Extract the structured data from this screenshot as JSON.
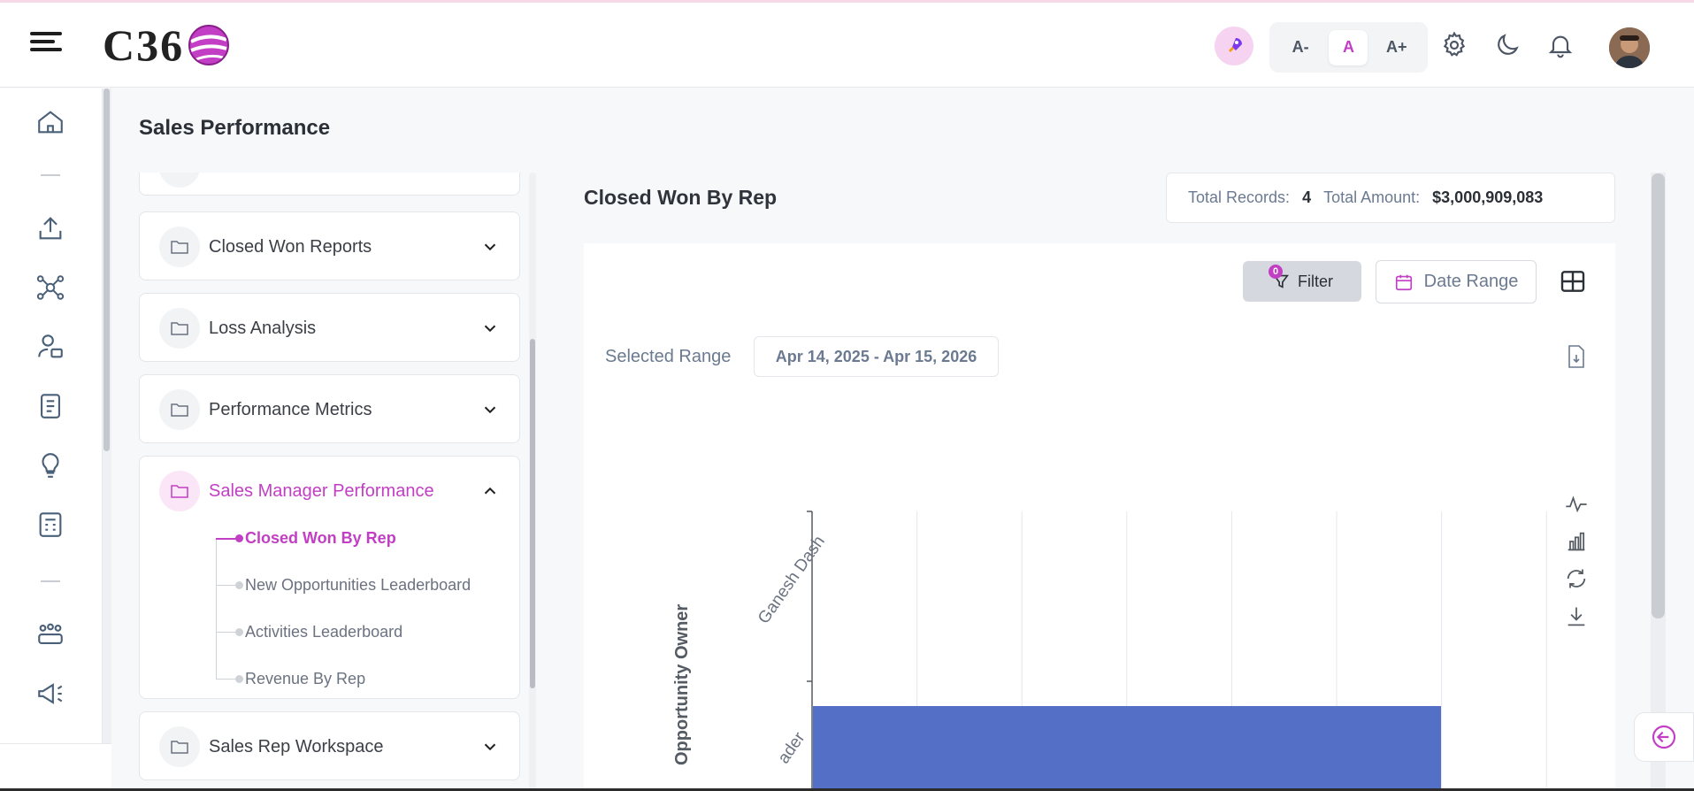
{
  "header": {
    "logo_text": "C36",
    "font_size_options": [
      "A-",
      "A",
      "A+"
    ],
    "selected_font_size": "A",
    "accent_color": "#c23ec4"
  },
  "rail": {
    "icons": [
      "home-icon",
      "upload-icon",
      "network-icon",
      "user-group-icon",
      "clipboard-icon",
      "lightbulb-icon",
      "calculator-icon",
      "team-icon",
      "megaphone-icon"
    ]
  },
  "page": {
    "title": "Sales Performance"
  },
  "tree": {
    "items": [
      {
        "label": "Closed Won Reports",
        "expanded": false
      },
      {
        "label": "Loss Analysis",
        "expanded": false
      },
      {
        "label": "Performance Metrics",
        "expanded": false
      },
      {
        "label": "Sales Manager Performance",
        "expanded": true,
        "children": [
          {
            "label": "Closed Won By Rep",
            "active": true
          },
          {
            "label": "New Opportunities Leaderboard",
            "active": false
          },
          {
            "label": "Activities Leaderboard",
            "active": false
          },
          {
            "label": "Revenue By Rep",
            "active": false
          }
        ]
      },
      {
        "label": "Sales Rep Workspace",
        "expanded": false
      }
    ]
  },
  "report": {
    "title": "Closed Won By Rep",
    "total_records_label": "Total Records:",
    "total_records_value": "4",
    "total_amount_label": "Total Amount:",
    "total_amount_value": "$3,000,909,083",
    "filter_label": "Filter",
    "filter_count": "0",
    "date_range_label": "Date Range",
    "selected_range_label": "Selected Range",
    "selected_range_value": "Apr 14, 2025 - Apr 15, 2026"
  },
  "chart_data": {
    "type": "bar",
    "orientation": "horizontal",
    "ylabel": "Opportunity Owner",
    "categories": [
      "Ganesh Dash",
      "ader"
    ],
    "bar_color": "#5470c6",
    "grid": true,
    "visible_bar_fraction": 0.86
  }
}
